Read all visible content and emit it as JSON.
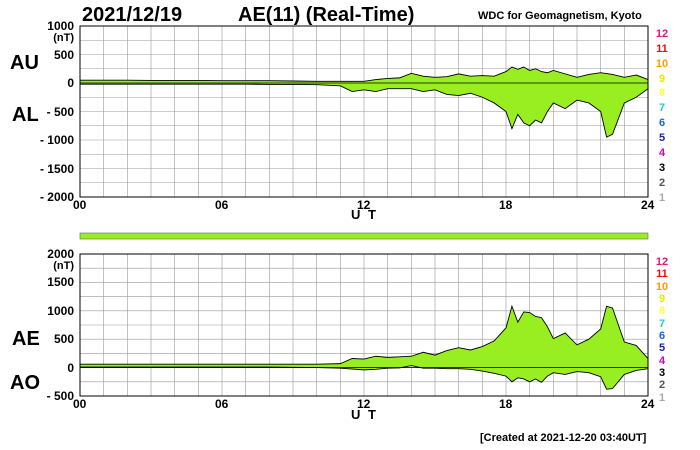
{
  "header": {
    "date": "2021/12/19",
    "title": "AE(11) (Real-Time)",
    "source": "WDC for Geomagnetism, Kyoto"
  },
  "footer": {
    "created": "[Created at 2021-12-20 03:40UT]"
  },
  "stations": {
    "labels": [
      "12",
      "11",
      "10",
      "9",
      "8",
      "7",
      "6",
      "5",
      "4",
      "3",
      "2",
      "1"
    ],
    "colors": [
      "#e0157a",
      "#e01010",
      "#ff9900",
      "#e8e800",
      "#ffff40",
      "#22cccc",
      "#1f5fe0",
      "#2020a0",
      "#cc00cc",
      "#000000",
      "#555555",
      "#aaaaaa"
    ]
  },
  "colors": {
    "fill": "#99ee22",
    "line": "#000000",
    "grid": "#999999"
  },
  "chart_data": [
    {
      "type": "area",
      "unit": "(nT)",
      "xlabel": "U T",
      "xticks": [
        "00",
        "06",
        "12",
        "18",
        "24"
      ],
      "xlim": [
        0,
        24
      ],
      "ylim": [
        -2000,
        1000
      ],
      "yticks": [
        1000,
        500,
        0,
        -500,
        -1000,
        -1500,
        -2000
      ],
      "ytick_labels": [
        "1000",
        "500",
        "0",
        "- 500",
        "- 1000",
        "- 1500",
        "- 2000"
      ],
      "grid": true,
      "series": [
        {
          "name": "AU",
          "x": [
            0,
            1,
            2,
            3,
            4,
            5,
            6,
            7,
            8,
            9,
            10,
            11,
            12,
            12.5,
            13,
            13.5,
            14,
            14.5,
            15,
            15.5,
            16,
            16.5,
            17,
            17.5,
            18,
            18.25,
            18.5,
            18.75,
            19,
            19.25,
            19.5,
            19.75,
            20,
            20.5,
            21,
            21.5,
            22,
            22.5,
            23,
            23.5,
            24
          ],
          "y": [
            50,
            50,
            50,
            45,
            45,
            45,
            40,
            40,
            40,
            35,
            30,
            30,
            30,
            60,
            80,
            90,
            170,
            120,
            100,
            110,
            160,
            120,
            130,
            120,
            200,
            280,
            240,
            280,
            220,
            250,
            200,
            180,
            220,
            160,
            100,
            150,
            180,
            150,
            100,
            140,
            60
          ]
        },
        {
          "name": "AL",
          "x": [
            0,
            1,
            2,
            3,
            4,
            5,
            6,
            7,
            8,
            9,
            10,
            11,
            11.5,
            12,
            12.5,
            13,
            13.5,
            14,
            14.5,
            15,
            15.5,
            16,
            16.5,
            17,
            17.5,
            18,
            18.25,
            18.5,
            18.75,
            19,
            19.25,
            19.5,
            19.75,
            20,
            20.5,
            21,
            21.5,
            22,
            22.25,
            22.5,
            23,
            23.5,
            24
          ],
          "y": [
            -20,
            -20,
            -20,
            -20,
            -20,
            -20,
            -20,
            -20,
            -25,
            -25,
            -30,
            -50,
            -150,
            -120,
            -150,
            -100,
            -100,
            -100,
            -150,
            -120,
            -200,
            -220,
            -180,
            -250,
            -350,
            -500,
            -800,
            -550,
            -700,
            -750,
            -650,
            -700,
            -500,
            -350,
            -450,
            -300,
            -350,
            -500,
            -950,
            -900,
            -350,
            -250,
            -100
          ]
        }
      ]
    },
    {
      "type": "area",
      "unit": "(nT)",
      "xlabel": "U T",
      "xticks": [
        "00",
        "06",
        "12",
        "18",
        "24"
      ],
      "xlim": [
        0,
        24
      ],
      "ylim": [
        -500,
        2000
      ],
      "yticks": [
        2000,
        1500,
        1000,
        500,
        0,
        -500
      ],
      "ytick_labels": [
        "2000",
        "1500",
        "1000",
        "500",
        "0",
        "- 500"
      ],
      "grid": true,
      "series": [
        {
          "name": "AE",
          "x": [
            0,
            1,
            2,
            3,
            4,
            5,
            6,
            7,
            8,
            9,
            10,
            11,
            11.5,
            12,
            12.5,
            13,
            13.5,
            14,
            14.5,
            15,
            15.5,
            16,
            16.5,
            17,
            17.5,
            18,
            18.25,
            18.5,
            18.75,
            19,
            19.25,
            19.5,
            19.75,
            20,
            20.5,
            21,
            21.5,
            22,
            22.25,
            22.5,
            23,
            23.5,
            24
          ],
          "y": [
            60,
            60,
            60,
            60,
            60,
            60,
            60,
            60,
            60,
            60,
            60,
            70,
            160,
            150,
            200,
            180,
            190,
            200,
            270,
            220,
            300,
            350,
            310,
            370,
            470,
            700,
            1080,
            800,
            980,
            970,
            900,
            880,
            720,
            510,
            610,
            400,
            500,
            680,
            1080,
            1050,
            450,
            390,
            160
          ]
        },
        {
          "name": "AO",
          "x": [
            0,
            1,
            2,
            3,
            4,
            5,
            6,
            7,
            8,
            9,
            10,
            11,
            12,
            12.5,
            13,
            13.5,
            14,
            14.5,
            15,
            15.5,
            16,
            16.5,
            17,
            17.5,
            18,
            18.25,
            18.5,
            18.75,
            19,
            19.25,
            19.5,
            19.75,
            20,
            20.5,
            21,
            21.5,
            22,
            22.25,
            22.5,
            23,
            23.5,
            24
          ],
          "y": [
            10,
            10,
            10,
            10,
            10,
            10,
            10,
            10,
            10,
            5,
            0,
            -10,
            -40,
            -30,
            -10,
            -5,
            35,
            -10,
            -10,
            -20,
            -20,
            -30,
            -60,
            -100,
            -150,
            -250,
            -180,
            -200,
            -250,
            -200,
            -260,
            -150,
            -90,
            -120,
            -70,
            -90,
            -160,
            -380,
            -370,
            -120,
            -50,
            -20
          ]
        }
      ]
    }
  ],
  "panel1": {
    "left_label_top": "AU",
    "left_label_bottom": "AL"
  },
  "panel2": {
    "left_label_top": "AE",
    "left_label_bottom": "AO"
  }
}
